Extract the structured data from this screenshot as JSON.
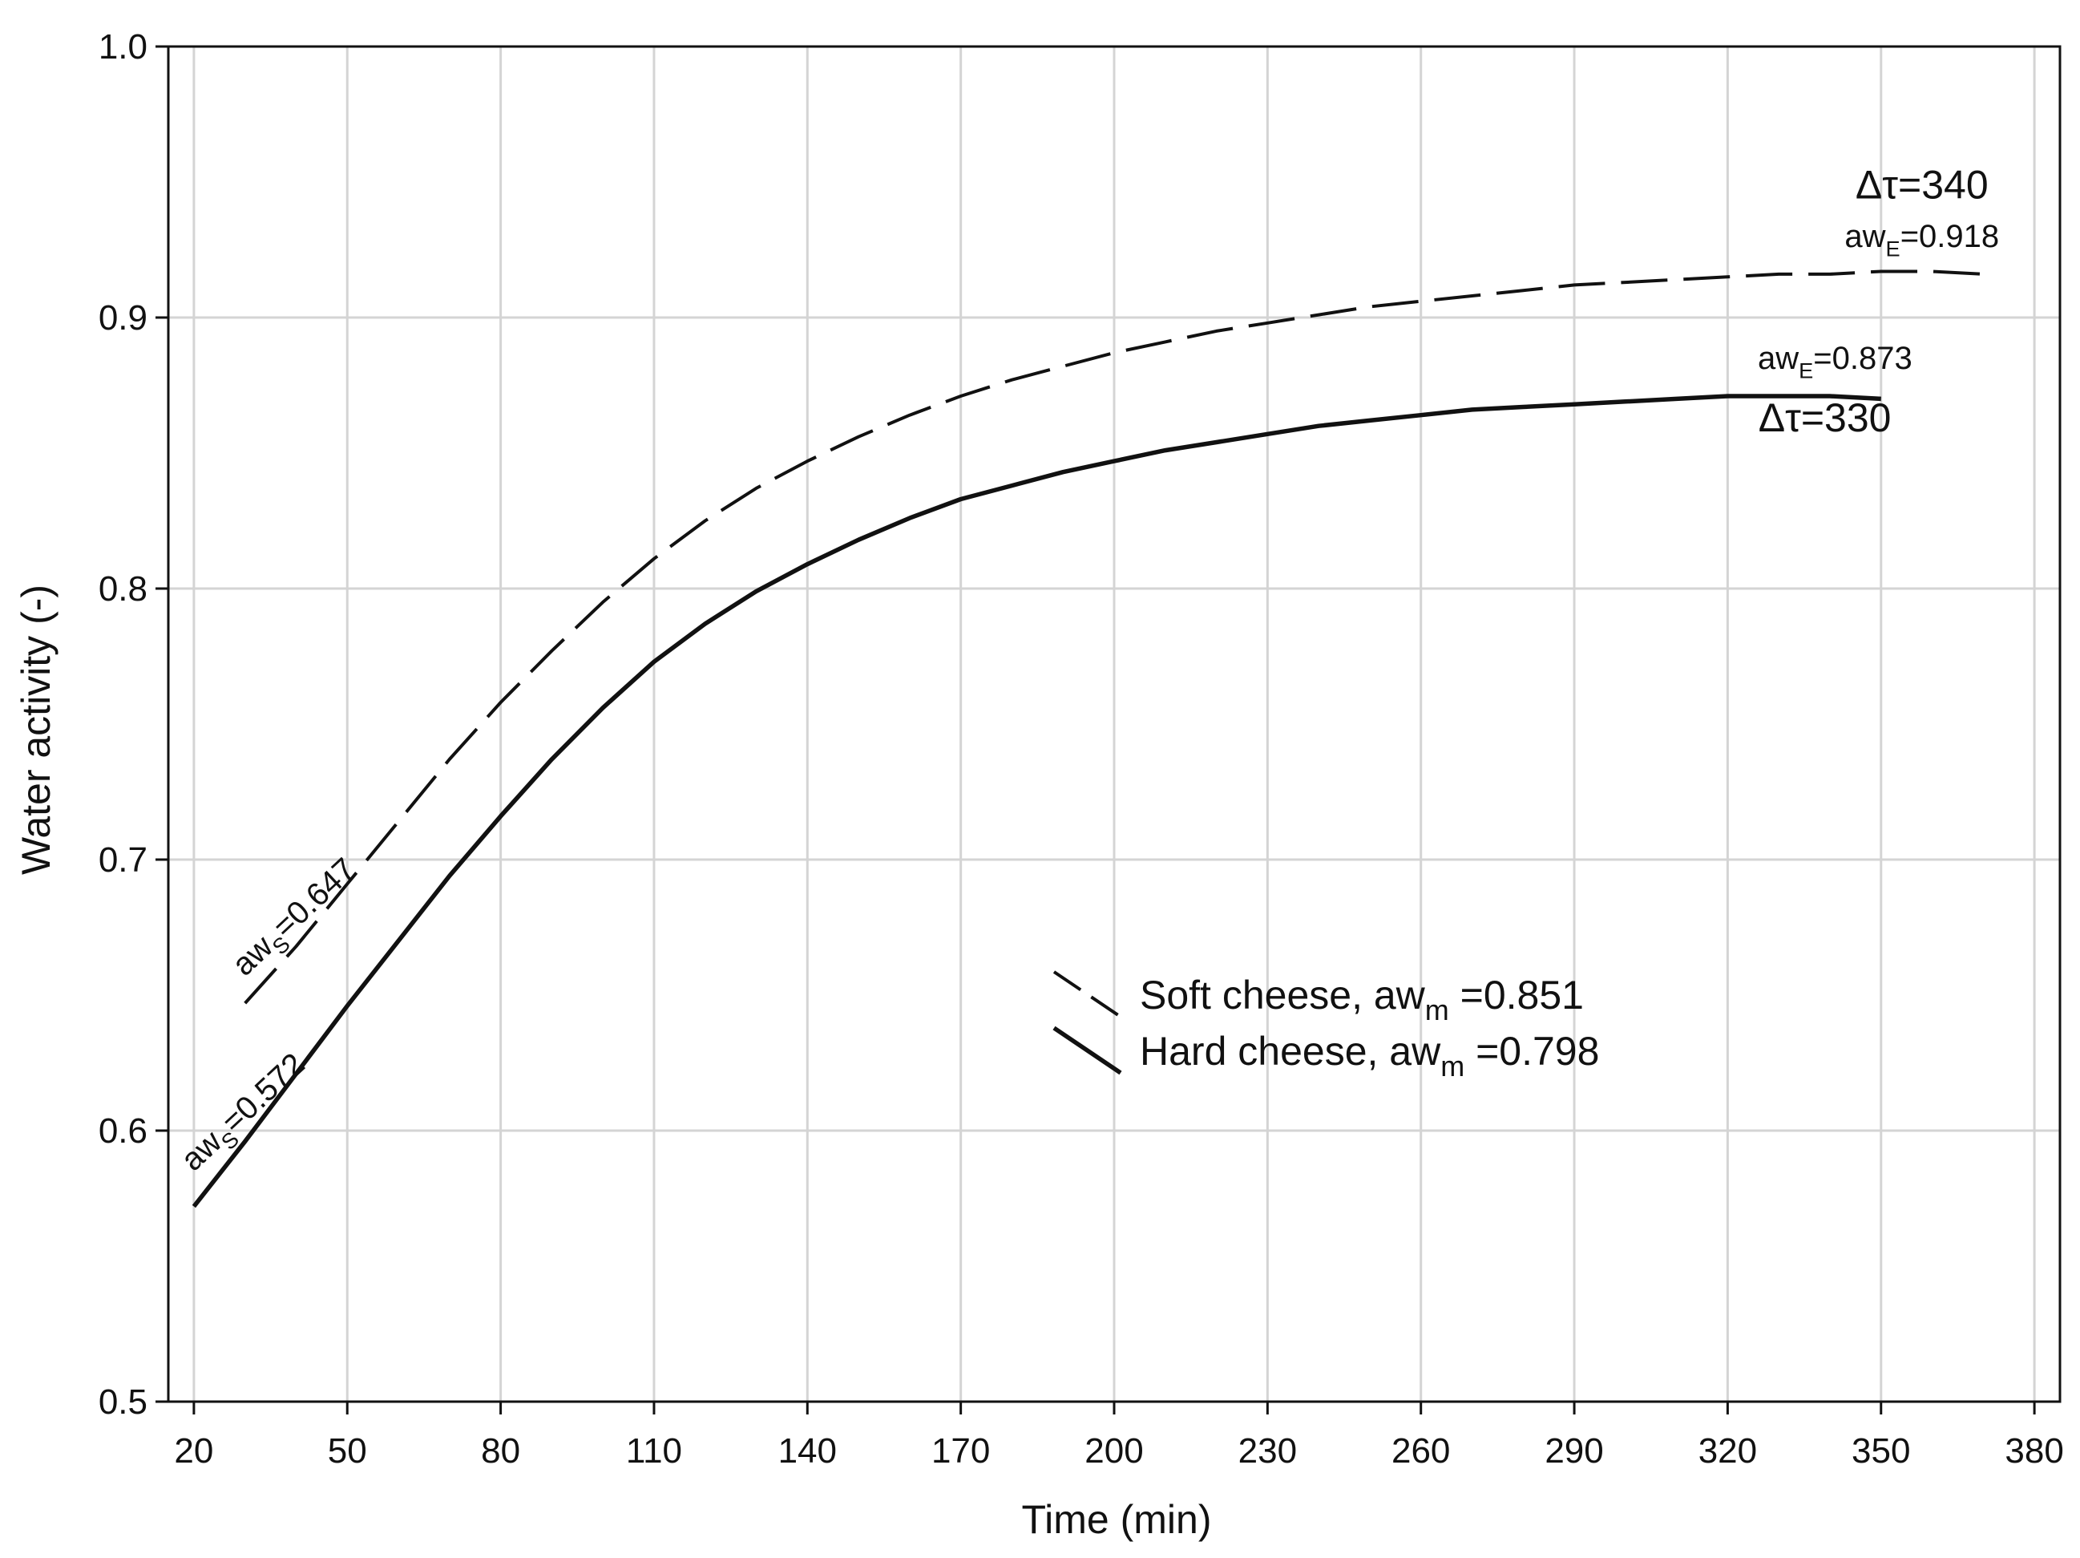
{
  "chart_data": {
    "type": "line",
    "title": "",
    "xlabel": "Time (min)",
    "ylabel": "Water activity (-)",
    "xlim": [
      15,
      385
    ],
    "ylim": [
      0.5,
      1.0
    ],
    "xticks": [
      20,
      50,
      80,
      110,
      140,
      170,
      200,
      230,
      260,
      290,
      320,
      350,
      380
    ],
    "yticks": [
      0.5,
      0.6,
      0.7,
      0.8,
      0.9,
      1.0
    ],
    "ytick_labels": [
      "0.5",
      "0.6",
      "0.7",
      "0.8",
      "0.9",
      "1.0"
    ],
    "grid": true,
    "legend_position": "center",
    "series": [
      {
        "name": "Soft cheese,  aw",
        "name_sub": "m",
        "name_value": " =0.851",
        "style": "dashed",
        "color": "#111111",
        "x": [
          30,
          40,
          50,
          60,
          70,
          80,
          90,
          100,
          110,
          120,
          130,
          140,
          150,
          160,
          170,
          180,
          190,
          200,
          210,
          220,
          230,
          240,
          250,
          260,
          270,
          280,
          290,
          300,
          310,
          320,
          330,
          340,
          350,
          360,
          370
        ],
        "y": [
          0.647,
          0.668,
          0.691,
          0.714,
          0.737,
          0.758,
          0.777,
          0.795,
          0.811,
          0.825,
          0.837,
          0.847,
          0.856,
          0.864,
          0.871,
          0.877,
          0.882,
          0.887,
          0.891,
          0.895,
          0.898,
          0.901,
          0.904,
          0.906,
          0.908,
          0.91,
          0.912,
          0.913,
          0.914,
          0.915,
          0.916,
          0.916,
          0.917,
          0.917,
          0.916
        ]
      },
      {
        "name": "Hard cheese, aw",
        "name_sub": "m",
        "name_value": " =0.798",
        "style": "solid",
        "color": "#111111",
        "x": [
          20,
          30,
          40,
          50,
          60,
          70,
          80,
          90,
          100,
          110,
          120,
          130,
          140,
          150,
          160,
          170,
          180,
          190,
          200,
          210,
          220,
          230,
          240,
          250,
          260,
          270,
          280,
          290,
          300,
          310,
          320,
          330,
          340,
          350
        ],
        "y": [
          0.572,
          0.596,
          0.621,
          0.646,
          0.67,
          0.694,
          0.716,
          0.737,
          0.756,
          0.773,
          0.787,
          0.799,
          0.809,
          0.818,
          0.826,
          0.833,
          0.838,
          0.843,
          0.847,
          0.851,
          0.854,
          0.857,
          0.86,
          0.862,
          0.864,
          0.866,
          0.867,
          0.868,
          0.869,
          0.87,
          0.871,
          0.871,
          0.871,
          0.87
        ]
      }
    ],
    "annotations": [
      {
        "id": "dt340",
        "text": "Δτ=340",
        "x": 358,
        "y": 0.944,
        "size": "large",
        "anchor": "middle",
        "rotate": 0
      },
      {
        "id": "awE918",
        "main": "aw",
        "sub": "E",
        "rest": "=0.918",
        "x": 358,
        "y": 0.926,
        "size": "small",
        "anchor": "middle",
        "rotate": 0
      },
      {
        "id": "awE873",
        "main": "aw",
        "sub": "E",
        "rest": "=0.873",
        "x": 341,
        "y": 0.881,
        "size": "small",
        "anchor": "middle",
        "rotate": 0
      },
      {
        "id": "dt330",
        "text": "Δτ=330",
        "x": 339,
        "y": 0.858,
        "size": "large",
        "anchor": "middle",
        "rotate": 0
      },
      {
        "id": "awS647",
        "main": "aw",
        "sub": "S",
        "rest": "=0.647",
        "x": 41,
        "y": 0.676,
        "size": "small",
        "anchor": "middle",
        "rotate": -43
      },
      {
        "id": "awS572",
        "main": "aw",
        "sub": "S",
        "rest": "=0.572",
        "x": 31,
        "y": 0.604,
        "size": "small",
        "anchor": "middle",
        "rotate": -43
      }
    ]
  }
}
